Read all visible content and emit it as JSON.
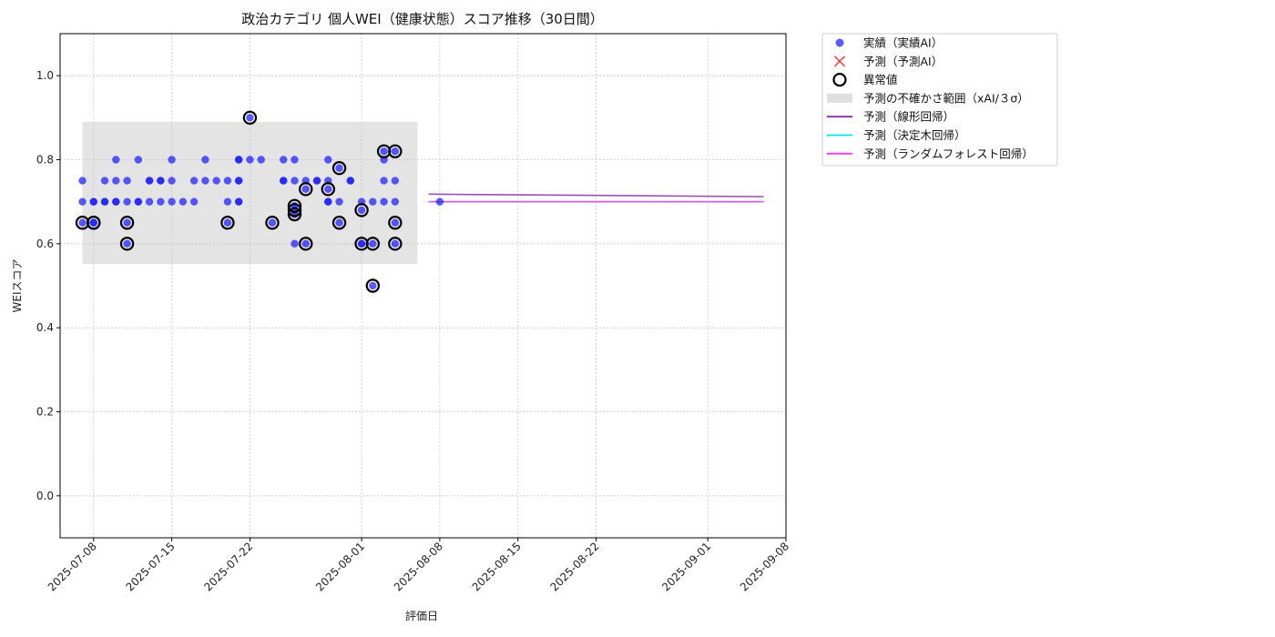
{
  "chart_data": {
    "type": "scatter",
    "title": "政治カテゴリ 個人WEI（健康状態）スコア推移（30日間）",
    "xlabel": "評価日",
    "ylabel": "WEIスコア",
    "xlim": [
      "2025-07-05",
      "2025-09-08"
    ],
    "ylim": [
      -0.1,
      1.1
    ],
    "yticks": [
      0.0,
      0.2,
      0.4,
      0.6,
      0.8,
      1.0
    ],
    "ytick_labels": [
      "0.0",
      "0.2",
      "0.4",
      "0.6",
      "0.8",
      "1.0"
    ],
    "xticks": [
      "2025-07-08",
      "2025-07-15",
      "2025-07-22",
      "2025-08-01",
      "2025-08-08",
      "2025-08-15",
      "2025-08-22",
      "2025-09-01",
      "2025-09-08"
    ],
    "grid": true,
    "legend_position": "outside-top-right",
    "uncertainty_band": {
      "x_start": "2025-07-07",
      "x_end": "2025-08-06",
      "y_low": 0.552,
      "y_high": 0.89,
      "color": "#bfbfbf"
    },
    "actual_points": [
      [
        "2025-07-07",
        0.75
      ],
      [
        "2025-07-07",
        0.65
      ],
      [
        "2025-07-07",
        0.7
      ],
      [
        "2025-07-08",
        0.65
      ],
      [
        "2025-07-08",
        0.7
      ],
      [
        "2025-07-08",
        0.65
      ],
      [
        "2025-07-08",
        0.7
      ],
      [
        "2025-07-09",
        0.75
      ],
      [
        "2025-07-09",
        0.7
      ],
      [
        "2025-07-09",
        0.7
      ],
      [
        "2025-07-10",
        0.7
      ],
      [
        "2025-07-10",
        0.75
      ],
      [
        "2025-07-10",
        0.8
      ],
      [
        "2025-07-10",
        0.7
      ],
      [
        "2025-07-11",
        0.75
      ],
      [
        "2025-07-11",
        0.6
      ],
      [
        "2025-07-11",
        0.7
      ],
      [
        "2025-07-11",
        0.65
      ],
      [
        "2025-07-12",
        0.8
      ],
      [
        "2025-07-12",
        0.7
      ],
      [
        "2025-07-12",
        0.7
      ],
      [
        "2025-07-13",
        0.75
      ],
      [
        "2025-07-13",
        0.75
      ],
      [
        "2025-07-13",
        0.7
      ],
      [
        "2025-07-14",
        0.75
      ],
      [
        "2025-07-14",
        0.7
      ],
      [
        "2025-07-14",
        0.75
      ],
      [
        "2025-07-15",
        0.8
      ],
      [
        "2025-07-15",
        0.75
      ],
      [
        "2025-07-15",
        0.7
      ],
      [
        "2025-07-16",
        0.7
      ],
      [
        "2025-07-17",
        0.75
      ],
      [
        "2025-07-17",
        0.7
      ],
      [
        "2025-07-18",
        0.75
      ],
      [
        "2025-07-18",
        0.8
      ],
      [
        "2025-07-19",
        0.75
      ],
      [
        "2025-07-20",
        0.75
      ],
      [
        "2025-07-20",
        0.7
      ],
      [
        "2025-07-20",
        0.65
      ],
      [
        "2025-07-21",
        0.75
      ],
      [
        "2025-07-21",
        0.7
      ],
      [
        "2025-07-21",
        0.8
      ],
      [
        "2025-07-21",
        0.8
      ],
      [
        "2025-07-21",
        0.7
      ],
      [
        "2025-07-21",
        0.75
      ],
      [
        "2025-07-22",
        0.8
      ],
      [
        "2025-07-22",
        0.9
      ],
      [
        "2025-07-23",
        0.8
      ],
      [
        "2025-07-24",
        0.65
      ],
      [
        "2025-07-25",
        0.75
      ],
      [
        "2025-07-25",
        0.8
      ],
      [
        "2025-07-25",
        0.75
      ],
      [
        "2025-07-26",
        0.75
      ],
      [
        "2025-07-26",
        0.8
      ],
      [
        "2025-07-26",
        0.67
      ],
      [
        "2025-07-26",
        0.68
      ],
      [
        "2025-07-26",
        0.69
      ],
      [
        "2025-07-26",
        0.6
      ],
      [
        "2025-07-27",
        0.73
      ],
      [
        "2025-07-27",
        0.75
      ],
      [
        "2025-07-27",
        0.6
      ],
      [
        "2025-07-28",
        0.75
      ],
      [
        "2025-07-28",
        0.75
      ],
      [
        "2025-07-29",
        0.7
      ],
      [
        "2025-07-29",
        0.7
      ],
      [
        "2025-07-29",
        0.73
      ],
      [
        "2025-07-29",
        0.75
      ],
      [
        "2025-07-29",
        0.8
      ],
      [
        "2025-07-30",
        0.7
      ],
      [
        "2025-07-30",
        0.65
      ],
      [
        "2025-07-30",
        0.78
      ],
      [
        "2025-07-31",
        0.75
      ],
      [
        "2025-07-31",
        0.75
      ],
      [
        "2025-08-01",
        0.7
      ],
      [
        "2025-08-01",
        0.6
      ],
      [
        "2025-08-01",
        0.6
      ],
      [
        "2025-08-01",
        0.68
      ],
      [
        "2025-08-02",
        0.6
      ],
      [
        "2025-08-02",
        0.5
      ],
      [
        "2025-08-02",
        0.7
      ],
      [
        "2025-08-03",
        0.7
      ],
      [
        "2025-08-03",
        0.75
      ],
      [
        "2025-08-03",
        0.8
      ],
      [
        "2025-08-03",
        0.82
      ],
      [
        "2025-08-04",
        0.7
      ],
      [
        "2025-08-04",
        0.75
      ],
      [
        "2025-08-04",
        0.82
      ],
      [
        "2025-08-04",
        0.65
      ],
      [
        "2025-08-04",
        0.6
      ],
      [
        "2025-08-08",
        0.7
      ]
    ],
    "outliers": [
      [
        "2025-07-07",
        0.65
      ],
      [
        "2025-07-08",
        0.65
      ],
      [
        "2025-07-08",
        0.65
      ],
      [
        "2025-07-11",
        0.6
      ],
      [
        "2025-07-11",
        0.65
      ],
      [
        "2025-07-20",
        0.65
      ],
      [
        "2025-07-22",
        0.9
      ],
      [
        "2025-07-24",
        0.65
      ],
      [
        "2025-07-26",
        0.67
      ],
      [
        "2025-07-26",
        0.68
      ],
      [
        "2025-07-26",
        0.69
      ],
      [
        "2025-07-27",
        0.73
      ],
      [
        "2025-07-27",
        0.6
      ],
      [
        "2025-07-29",
        0.73
      ],
      [
        "2025-07-30",
        0.65
      ],
      [
        "2025-07-30",
        0.78
      ],
      [
        "2025-08-01",
        0.6
      ],
      [
        "2025-08-01",
        0.68
      ],
      [
        "2025-08-02",
        0.6
      ],
      [
        "2025-08-02",
        0.5
      ],
      [
        "2025-08-03",
        0.82
      ],
      [
        "2025-08-04",
        0.82
      ],
      [
        "2025-08-04",
        0.65
      ],
      [
        "2025-08-04",
        0.6
      ]
    ],
    "forecast_lines": [
      {
        "name": "予測（線形回帰）",
        "color": "#8b2fa8",
        "x": [
          "2025-08-07",
          "2025-09-06"
        ],
        "y": [
          0.718,
          0.712
        ]
      },
      {
        "name": "予測（決定木回帰）",
        "color": "#00e5e5",
        "x": [
          "2025-08-07",
          "2025-09-06"
        ],
        "y": [
          0.7,
          0.7
        ]
      },
      {
        "name": "予測（ランダムフォレスト回帰）",
        "color": "#ff33ff",
        "x": [
          "2025-08-07",
          "2025-09-06"
        ],
        "y": [
          0.7,
          0.7
        ]
      }
    ],
    "colors": {
      "actual": "#1a1aff",
      "outlier_edge": "#000000",
      "predicted": "#ff4444",
      "band": "#bfbfbf"
    },
    "legend": [
      {
        "label": "実績（実績AI）",
        "kind": "dot"
      },
      {
        "label": "予測（予測AI）",
        "kind": "cross"
      },
      {
        "label": "異常値",
        "kind": "ring"
      },
      {
        "label": "予測の不確かさ範囲（xAI/３σ）",
        "kind": "band"
      },
      {
        "label": "予測（線形回帰）",
        "kind": "line",
        "color": "#8b2fa8"
      },
      {
        "label": "予測（決定木回帰）",
        "kind": "line",
        "color": "#00e5e5"
      },
      {
        "label": "予測（ランダムフォレスト回帰）",
        "kind": "line",
        "color": "#ff33ff"
      }
    ]
  }
}
